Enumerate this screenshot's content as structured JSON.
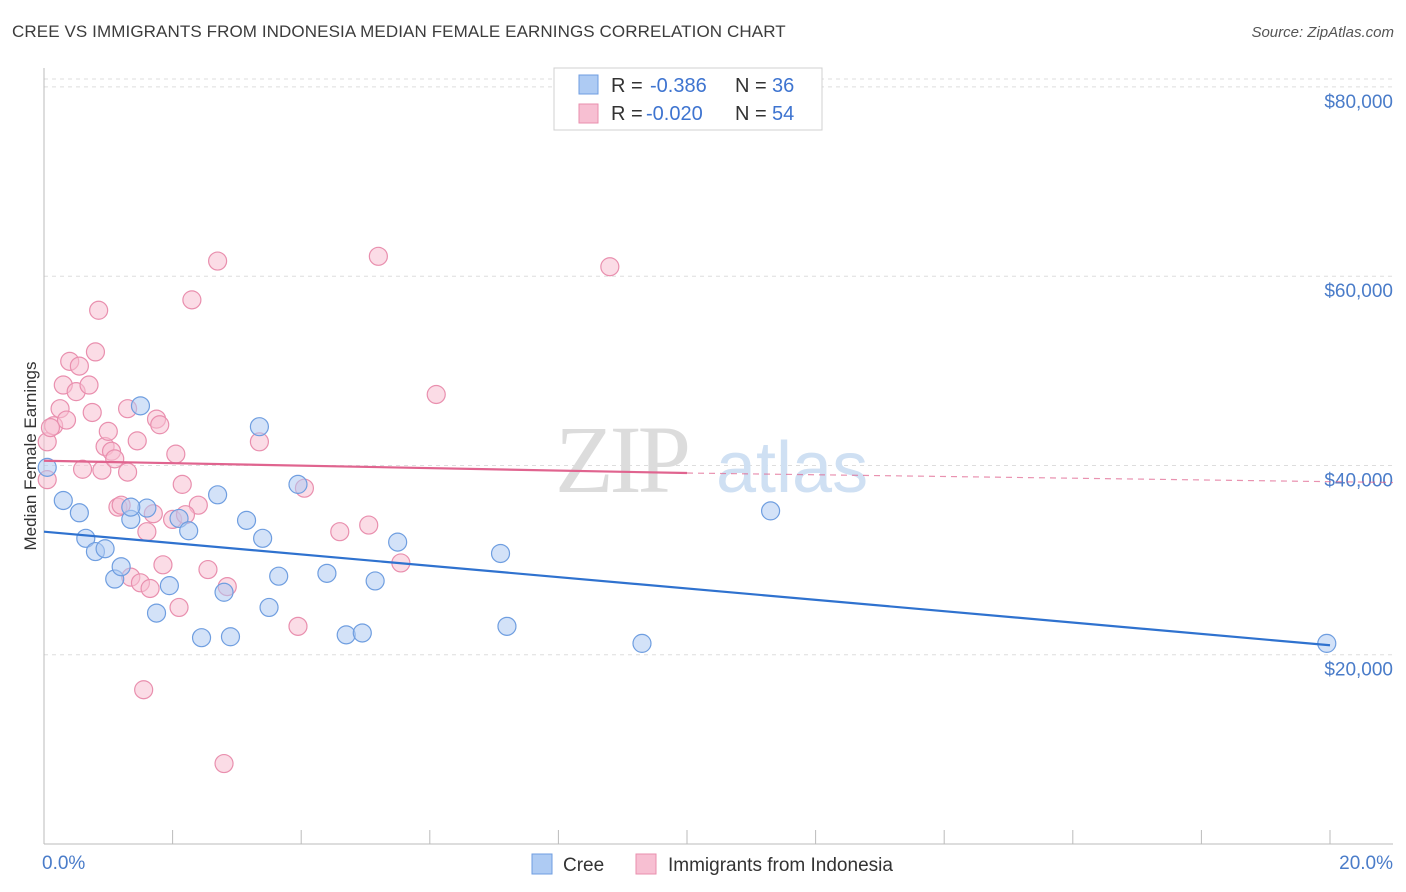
{
  "header": {
    "title": "CREE VS IMMIGRANTS FROM INDONESIA MEDIAN FEMALE EARNINGS CORRELATION CHART",
    "source": "Source: ZipAtlas.com"
  },
  "watermark": {
    "zip": "ZIP",
    "atlas": "atlas"
  },
  "legend": {
    "rows": [
      {
        "r_label": "R =",
        "r_value": "-0.386",
        "n_label": "N =",
        "n_value": "36"
      },
      {
        "r_label": "R =",
        "r_value": "-0.020",
        "n_label": "N =",
        "n_value": "54"
      }
    ]
  },
  "bottom_legend": {
    "cree": "Cree",
    "indonesia": "Immigrants from Indonesia"
  },
  "colors": {
    "cree_fill": "#aecbf3",
    "cree_stroke": "#6f9ee0",
    "cree_line": "#2f72cf",
    "indo_fill": "#f7bfd2",
    "indo_stroke": "#e98fae",
    "indo_line": "#e0648f",
    "axis_text": "#4a7cc9",
    "grid": "#dddddd"
  },
  "chart_data": {
    "type": "scatter",
    "title": "CREE VS IMMIGRANTS FROM INDONESIA MEDIAN FEMALE EARNINGS CORRELATION CHART",
    "xlabel": "",
    "ylabel": "Median Female Earnings",
    "xlim": [
      0,
      20
    ],
    "ylim": [
      0,
      82000
    ],
    "x_tick_labels": [
      "0.0%",
      "20.0%"
    ],
    "y_ticks": [
      {
        "value": 20000,
        "label": "$20,000"
      },
      {
        "value": 40000,
        "label": "$40,000"
      },
      {
        "value": 60000,
        "label": "$60,000"
      },
      {
        "value": 80000,
        "label": "$80,000"
      }
    ],
    "series": [
      {
        "name": "Cree",
        "r": -0.386,
        "n": 36,
        "trend": {
          "x0": 0,
          "y0": 33000,
          "x1": 20,
          "y1": 21000
        },
        "points": [
          [
            0.05,
            39800
          ],
          [
            0.3,
            36300
          ],
          [
            0.55,
            35000
          ],
          [
            0.65,
            32300
          ],
          [
            0.8,
            30900
          ],
          [
            0.95,
            31200
          ],
          [
            1.1,
            28000
          ],
          [
            1.2,
            29300
          ],
          [
            1.35,
            34300
          ],
          [
            1.5,
            46300
          ],
          [
            1.6,
            35500
          ],
          [
            1.75,
            24400
          ],
          [
            1.95,
            27300
          ],
          [
            2.1,
            34400
          ],
          [
            2.25,
            33100
          ],
          [
            2.45,
            21800
          ],
          [
            2.7,
            36900
          ],
          [
            2.8,
            26600
          ],
          [
            2.9,
            21900
          ],
          [
            3.15,
            34200
          ],
          [
            3.35,
            44100
          ],
          [
            3.4,
            32300
          ],
          [
            3.5,
            25000
          ],
          [
            3.65,
            28300
          ],
          [
            3.95,
            38000
          ],
          [
            4.4,
            28600
          ],
          [
            4.7,
            22100
          ],
          [
            4.95,
            22300
          ],
          [
            5.15,
            27800
          ],
          [
            5.5,
            31900
          ],
          [
            7.1,
            30700
          ],
          [
            7.2,
            23000
          ],
          [
            9.3,
            21200
          ],
          [
            11.3,
            35200
          ],
          [
            19.95,
            21200
          ],
          [
            1.35,
            35600
          ]
        ]
      },
      {
        "name": "Immigrants from Indonesia",
        "r": -0.02,
        "n": 54,
        "trend": {
          "x0": 0,
          "y0": 40500,
          "x1": 10,
          "y1": 39200,
          "x_dash_end": 20,
          "y_dash_end": 38200
        },
        "points": [
          [
            0.05,
            42500
          ],
          [
            0.05,
            38500
          ],
          [
            0.15,
            44200
          ],
          [
            0.25,
            46000
          ],
          [
            0.3,
            48500
          ],
          [
            0.35,
            44800
          ],
          [
            0.4,
            51000
          ],
          [
            0.5,
            47800
          ],
          [
            0.55,
            50500
          ],
          [
            0.6,
            39600
          ],
          [
            0.7,
            48500
          ],
          [
            0.75,
            45600
          ],
          [
            0.8,
            52000
          ],
          [
            0.85,
            56400
          ],
          [
            0.9,
            39500
          ],
          [
            0.95,
            42000
          ],
          [
            1.0,
            43600
          ],
          [
            1.05,
            41500
          ],
          [
            1.1,
            40700
          ],
          [
            1.15,
            35600
          ],
          [
            1.2,
            35800
          ],
          [
            1.3,
            39300
          ],
          [
            1.3,
            46000
          ],
          [
            1.35,
            28200
          ],
          [
            1.45,
            42600
          ],
          [
            1.5,
            27600
          ],
          [
            1.55,
            16300
          ],
          [
            1.6,
            33000
          ],
          [
            1.65,
            27000
          ],
          [
            1.7,
            34900
          ],
          [
            1.75,
            44900
          ],
          [
            1.8,
            44300
          ],
          [
            1.85,
            29500
          ],
          [
            2.0,
            34300
          ],
          [
            2.05,
            41200
          ],
          [
            2.1,
            25000
          ],
          [
            2.15,
            38000
          ],
          [
            2.3,
            57500
          ],
          [
            2.4,
            35800
          ],
          [
            2.55,
            29000
          ],
          [
            2.7,
            61600
          ],
          [
            2.8,
            8500
          ],
          [
            2.85,
            27200
          ],
          [
            3.35,
            42500
          ],
          [
            4.05,
            37600
          ],
          [
            3.95,
            23000
          ],
          [
            4.6,
            33000
          ],
          [
            5.05,
            33700
          ],
          [
            5.2,
            62100
          ],
          [
            5.55,
            29700
          ],
          [
            6.1,
            47500
          ],
          [
            8.8,
            61000
          ],
          [
            0.1,
            44000
          ],
          [
            2.2,
            34800
          ]
        ]
      }
    ]
  }
}
